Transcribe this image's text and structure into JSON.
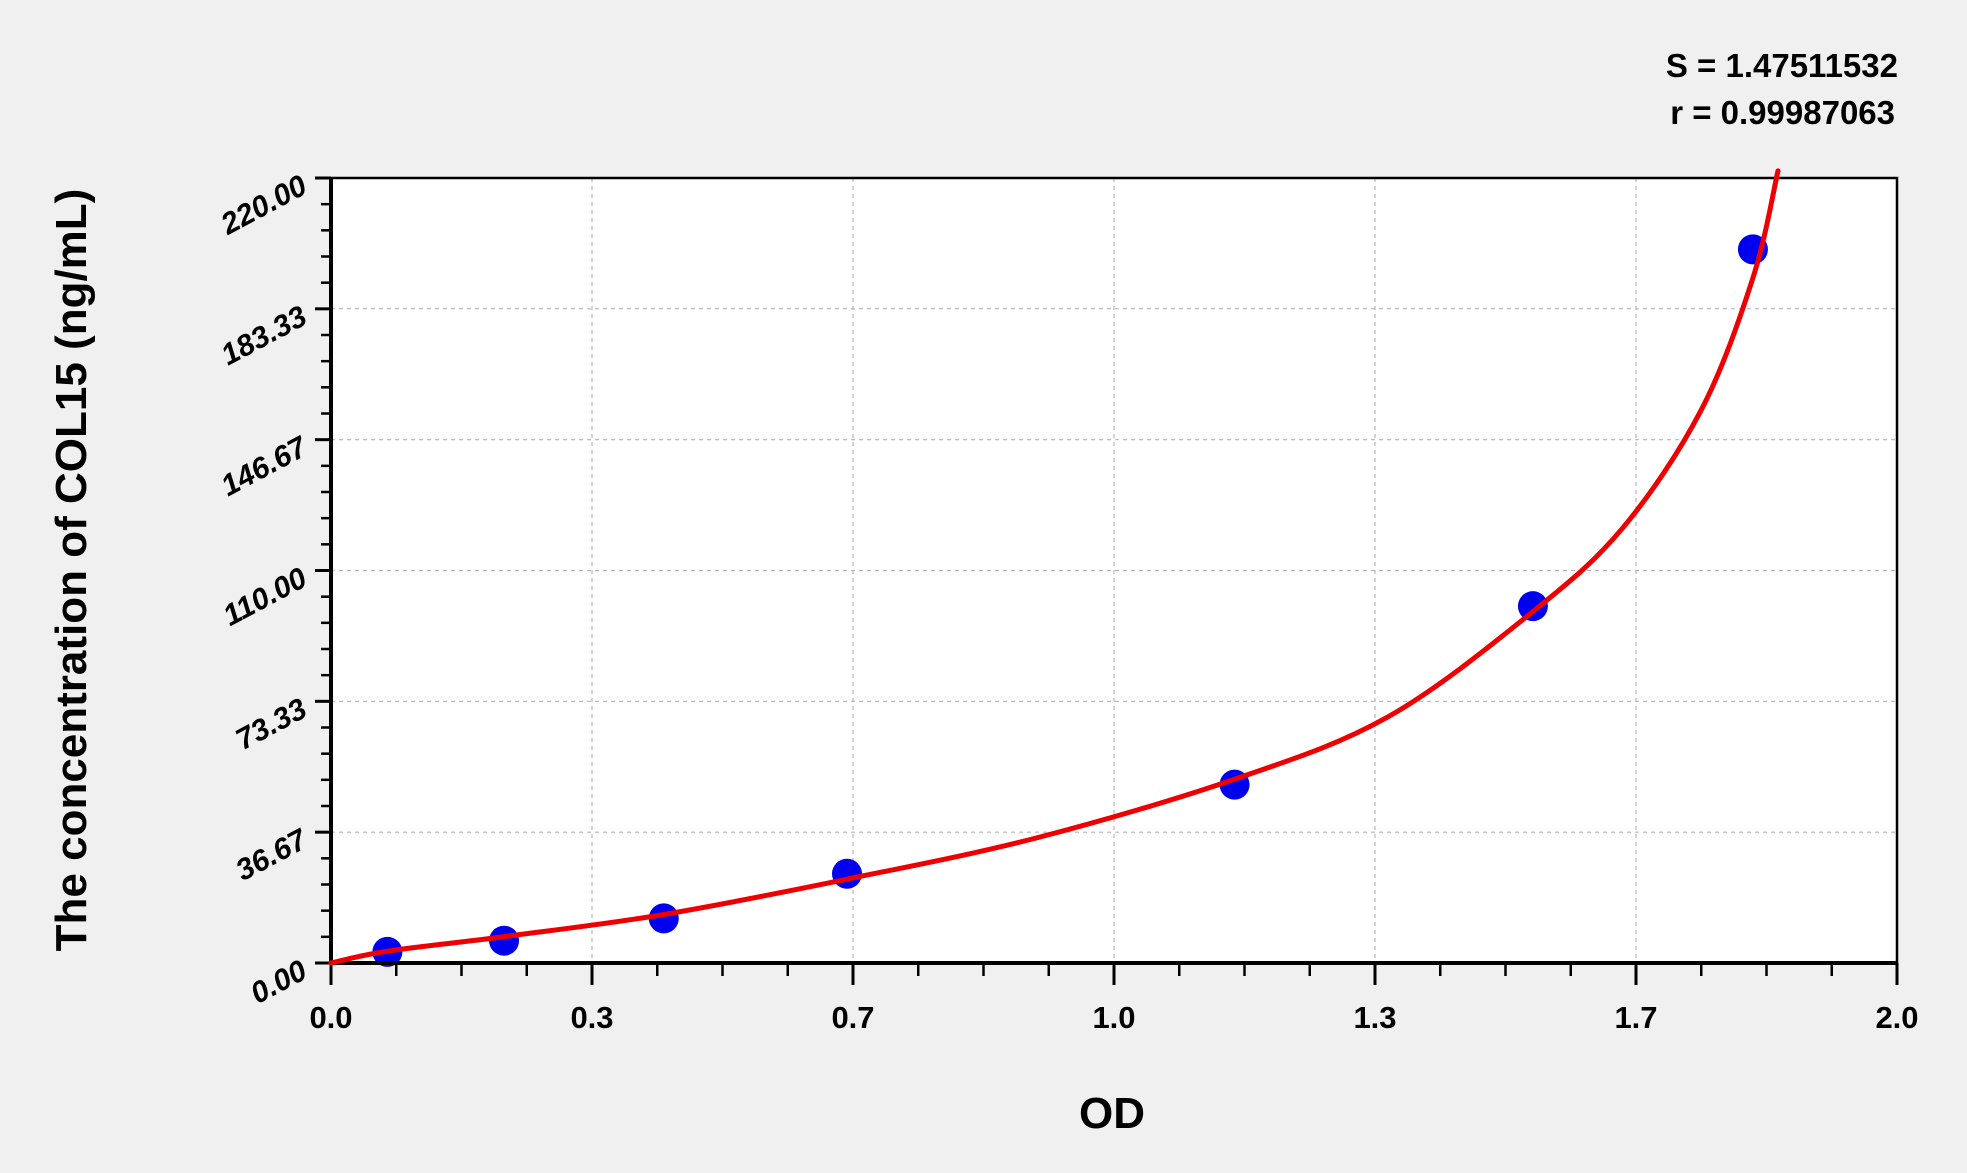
{
  "chart_data": {
    "type": "scatter",
    "title": "",
    "xlabel": "OD",
    "ylabel": "The concentration of COL15 (ng/mL)",
    "xlim": [
      0.0,
      2.0
    ],
    "ylim": [
      0.0,
      220.0
    ],
    "x_tick_labels": [
      "0.0",
      "0.3",
      "0.7",
      "1.0",
      "1.3",
      "1.7",
      "2.0"
    ],
    "y_tick_labels": [
      "0.00",
      "36.67",
      "73.33",
      "110.00",
      "146.67",
      "183.33",
      "220.00"
    ],
    "grid": true,
    "annotations": [
      "S = 1.47511532",
      "r = 0.99987063"
    ],
    "series": [
      {
        "kind": "points",
        "color": "#0000ee",
        "x": [
          0.072,
          0.221,
          0.425,
          0.659,
          1.154,
          1.535,
          1.816
        ],
        "y": [
          3.12,
          6.25,
          12.5,
          25,
          50,
          100,
          200
        ]
      },
      {
        "kind": "fit-curve",
        "color": "#ee0000",
        "x": [
          0.0,
          0.072,
          0.221,
          0.425,
          0.659,
          0.9,
          1.154,
          1.35,
          1.535,
          1.65,
          1.75,
          1.816,
          1.848
        ],
        "y": [
          0.0,
          3.3,
          7.4,
          13.6,
          23.5,
          35.0,
          51.5,
          69.0,
          98.5,
          122.0,
          155.0,
          192.0,
          222.0
        ]
      }
    ]
  }
}
